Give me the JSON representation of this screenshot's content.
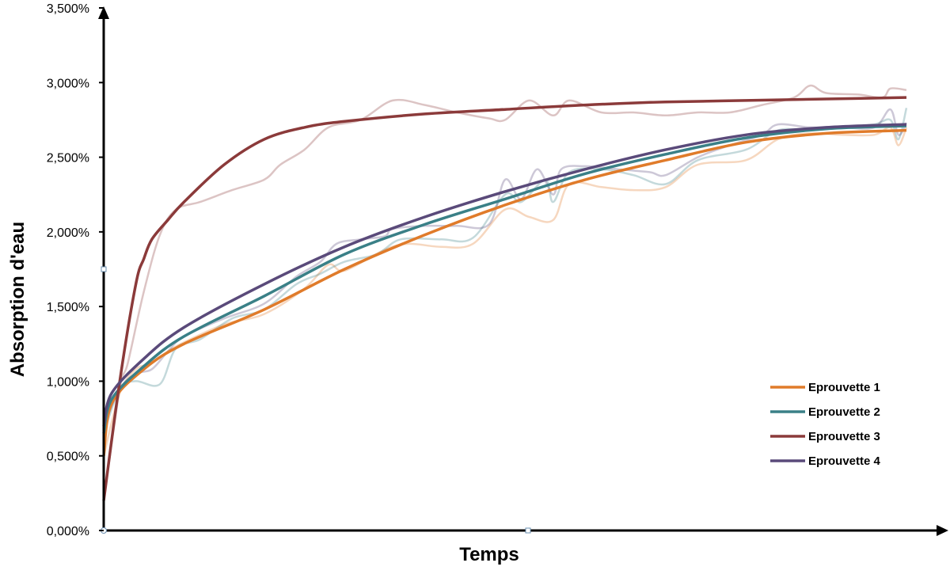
{
  "chart_data": {
    "type": "line",
    "title": "",
    "xlabel": "Temps",
    "ylabel": "Absorption d'eau",
    "ylim": [
      0,
      3.5
    ],
    "xlim": [
      0,
      1
    ],
    "y_tick_labels": [
      "0,000%",
      "0,500%",
      "1,000%",
      "1,500%",
      "2,000%",
      "2,500%",
      "3,000%",
      "3,500%"
    ],
    "y_ticks": [
      0,
      0.5,
      1.0,
      1.5,
      2.0,
      2.5,
      3.0,
      3.5
    ],
    "grid": false,
    "legend_position": "right",
    "series": [
      {
        "name": "Eprouvette 1",
        "color": "#E07B2A",
        "trend": [
          [
            0,
            0.5
          ],
          [
            0.01,
            0.85
          ],
          [
            0.05,
            1.08
          ],
          [
            0.1,
            1.25
          ],
          [
            0.2,
            1.48
          ],
          [
            0.3,
            1.75
          ],
          [
            0.4,
            1.98
          ],
          [
            0.5,
            2.18
          ],
          [
            0.6,
            2.35
          ],
          [
            0.7,
            2.48
          ],
          [
            0.8,
            2.6
          ],
          [
            0.9,
            2.66
          ],
          [
            1.0,
            2.68
          ]
        ],
        "raw": [
          [
            0,
            0.5
          ],
          [
            0.02,
            0.92
          ],
          [
            0.04,
            1.08
          ],
          [
            0.06,
            1.12
          ],
          [
            0.08,
            1.2
          ],
          [
            0.1,
            1.26
          ],
          [
            0.15,
            1.38
          ],
          [
            0.2,
            1.45
          ],
          [
            0.25,
            1.62
          ],
          [
            0.28,
            1.78
          ],
          [
            0.3,
            1.74
          ],
          [
            0.35,
            1.88
          ],
          [
            0.38,
            1.92
          ],
          [
            0.42,
            1.9
          ],
          [
            0.46,
            1.92
          ],
          [
            0.5,
            2.15
          ],
          [
            0.53,
            2.1
          ],
          [
            0.56,
            2.08
          ],
          [
            0.58,
            2.32
          ],
          [
            0.62,
            2.3
          ],
          [
            0.66,
            2.28
          ],
          [
            0.7,
            2.3
          ],
          [
            0.74,
            2.45
          ],
          [
            0.8,
            2.48
          ],
          [
            0.84,
            2.62
          ],
          [
            0.88,
            2.66
          ],
          [
            0.92,
            2.65
          ],
          [
            0.96,
            2.65
          ],
          [
            0.98,
            2.7
          ],
          [
            0.99,
            2.58
          ],
          [
            1.0,
            2.7
          ]
        ]
      },
      {
        "name": "Eprouvette 2",
        "color": "#3A8087",
        "trend": [
          [
            0,
            0.65
          ],
          [
            0.01,
            0.88
          ],
          [
            0.05,
            1.1
          ],
          [
            0.1,
            1.3
          ],
          [
            0.2,
            1.57
          ],
          [
            0.3,
            1.85
          ],
          [
            0.4,
            2.05
          ],
          [
            0.5,
            2.22
          ],
          [
            0.6,
            2.39
          ],
          [
            0.7,
            2.52
          ],
          [
            0.8,
            2.63
          ],
          [
            0.9,
            2.69
          ],
          [
            1.0,
            2.71
          ]
        ],
        "raw": [
          [
            0,
            0.65
          ],
          [
            0.02,
            0.95
          ],
          [
            0.04,
            1.0
          ],
          [
            0.07,
            0.98
          ],
          [
            0.09,
            1.22
          ],
          [
            0.12,
            1.28
          ],
          [
            0.16,
            1.42
          ],
          [
            0.2,
            1.48
          ],
          [
            0.24,
            1.65
          ],
          [
            0.27,
            1.72
          ],
          [
            0.3,
            1.8
          ],
          [
            0.34,
            1.85
          ],
          [
            0.37,
            1.95
          ],
          [
            0.42,
            1.95
          ],
          [
            0.46,
            1.96
          ],
          [
            0.5,
            2.25
          ],
          [
            0.52,
            2.2
          ],
          [
            0.55,
            2.35
          ],
          [
            0.56,
            2.2
          ],
          [
            0.58,
            2.4
          ],
          [
            0.62,
            2.42
          ],
          [
            0.66,
            2.38
          ],
          [
            0.7,
            2.32
          ],
          [
            0.74,
            2.48
          ],
          [
            0.8,
            2.55
          ],
          [
            0.84,
            2.68
          ],
          [
            0.88,
            2.68
          ],
          [
            0.92,
            2.7
          ],
          [
            0.96,
            2.72
          ],
          [
            0.98,
            2.75
          ],
          [
            0.99,
            2.62
          ],
          [
            1.0,
            2.83
          ]
        ]
      },
      {
        "name": "Eprouvette 3",
        "color": "#8B3A3A",
        "trend": [
          [
            0,
            0.2
          ],
          [
            0.02,
            1.0
          ],
          [
            0.04,
            1.65
          ],
          [
            0.05,
            1.82
          ],
          [
            0.06,
            1.95
          ],
          [
            0.08,
            2.08
          ],
          [
            0.1,
            2.2
          ],
          [
            0.15,
            2.45
          ],
          [
            0.2,
            2.62
          ],
          [
            0.25,
            2.7
          ],
          [
            0.3,
            2.74
          ],
          [
            0.4,
            2.79
          ],
          [
            0.5,
            2.82
          ],
          [
            0.6,
            2.85
          ],
          [
            0.7,
            2.87
          ],
          [
            0.8,
            2.88
          ],
          [
            0.9,
            2.89
          ],
          [
            1.0,
            2.9
          ]
        ],
        "raw": [
          [
            0,
            0.2
          ],
          [
            0.02,
            0.95
          ],
          [
            0.03,
            1.12
          ],
          [
            0.05,
            1.6
          ],
          [
            0.07,
            1.98
          ],
          [
            0.09,
            2.15
          ],
          [
            0.12,
            2.2
          ],
          [
            0.16,
            2.28
          ],
          [
            0.2,
            2.35
          ],
          [
            0.22,
            2.45
          ],
          [
            0.25,
            2.55
          ],
          [
            0.28,
            2.7
          ],
          [
            0.32,
            2.75
          ],
          [
            0.36,
            2.88
          ],
          [
            0.4,
            2.85
          ],
          [
            0.44,
            2.8
          ],
          [
            0.48,
            2.76
          ],
          [
            0.5,
            2.75
          ],
          [
            0.53,
            2.88
          ],
          [
            0.56,
            2.78
          ],
          [
            0.58,
            2.88
          ],
          [
            0.62,
            2.8
          ],
          [
            0.66,
            2.8
          ],
          [
            0.7,
            2.78
          ],
          [
            0.74,
            2.8
          ],
          [
            0.78,
            2.8
          ],
          [
            0.82,
            2.85
          ],
          [
            0.86,
            2.9
          ],
          [
            0.88,
            2.98
          ],
          [
            0.9,
            2.93
          ],
          [
            0.94,
            2.92
          ],
          [
            0.97,
            2.9
          ],
          [
            0.98,
            2.96
          ],
          [
            1.0,
            2.95
          ]
        ]
      },
      {
        "name": "Eprouvette 4",
        "color": "#5A4A7A",
        "trend": [
          [
            0,
            0.7
          ],
          [
            0.01,
            0.92
          ],
          [
            0.05,
            1.15
          ],
          [
            0.1,
            1.36
          ],
          [
            0.2,
            1.65
          ],
          [
            0.3,
            1.9
          ],
          [
            0.4,
            2.1
          ],
          [
            0.5,
            2.27
          ],
          [
            0.6,
            2.42
          ],
          [
            0.7,
            2.55
          ],
          [
            0.8,
            2.65
          ],
          [
            0.9,
            2.7
          ],
          [
            1.0,
            2.72
          ]
        ],
        "raw": [
          [
            0,
            0.7
          ],
          [
            0.02,
            0.95
          ],
          [
            0.04,
            1.05
          ],
          [
            0.06,
            1.08
          ],
          [
            0.08,
            1.2
          ],
          [
            0.1,
            1.3
          ],
          [
            0.15,
            1.42
          ],
          [
            0.2,
            1.52
          ],
          [
            0.24,
            1.7
          ],
          [
            0.27,
            1.8
          ],
          [
            0.29,
            1.92
          ],
          [
            0.32,
            1.95
          ],
          [
            0.35,
            1.97
          ],
          [
            0.36,
            2.02
          ],
          [
            0.4,
            2.04
          ],
          [
            0.44,
            2.04
          ],
          [
            0.48,
            2.05
          ],
          [
            0.5,
            2.35
          ],
          [
            0.52,
            2.22
          ],
          [
            0.54,
            2.42
          ],
          [
            0.56,
            2.25
          ],
          [
            0.57,
            2.42
          ],
          [
            0.6,
            2.44
          ],
          [
            0.64,
            2.42
          ],
          [
            0.68,
            2.4
          ],
          [
            0.7,
            2.38
          ],
          [
            0.74,
            2.5
          ],
          [
            0.78,
            2.58
          ],
          [
            0.82,
            2.65
          ],
          [
            0.84,
            2.72
          ],
          [
            0.88,
            2.7
          ],
          [
            0.92,
            2.7
          ],
          [
            0.96,
            2.7
          ],
          [
            0.98,
            2.82
          ],
          [
            0.99,
            2.65
          ],
          [
            1.0,
            2.73
          ]
        ]
      }
    ]
  }
}
